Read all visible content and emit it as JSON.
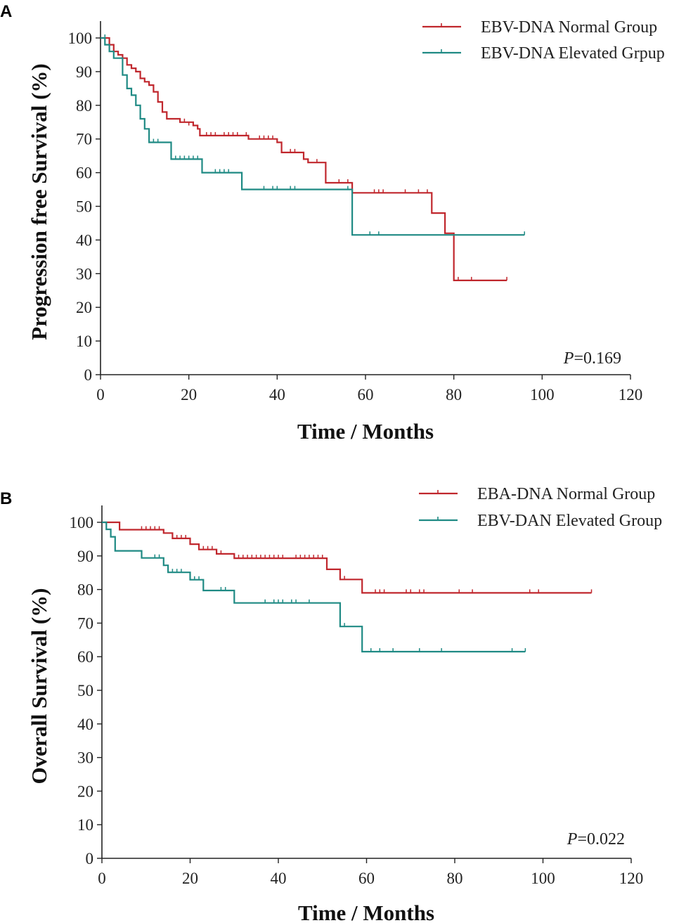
{
  "chart_data": [
    {
      "panel_label": "A",
      "type": "line",
      "subtype": "kaplan-meier",
      "xlabel": "Time / Months",
      "ylabel": "Progression free Survival (%)",
      "xlim": [
        0,
        120
      ],
      "ylim": [
        0,
        100
      ],
      "xticks": [
        0,
        20,
        40,
        60,
        80,
        100,
        120
      ],
      "yticks": [
        0,
        10,
        20,
        30,
        40,
        50,
        60,
        70,
        80,
        90,
        100
      ],
      "pvalue_letter": "P",
      "pvalue_rest": "=0.169",
      "legend_position": "top-right",
      "series": [
        {
          "name": "EBV-DNA Normal Group",
          "color": "#c0272d",
          "steps": [
            [
              0,
              100
            ],
            [
              2,
              98
            ],
            [
              3,
              96
            ],
            [
              4,
              95
            ],
            [
              5,
              94
            ],
            [
              6,
              92
            ],
            [
              7,
              91
            ],
            [
              8,
              90
            ],
            [
              9,
              88
            ],
            [
              10,
              87
            ],
            [
              11,
              86
            ],
            [
              12,
              84
            ],
            [
              13,
              81
            ],
            [
              14,
              78
            ],
            [
              15,
              76
            ],
            [
              18,
              75
            ],
            [
              21,
              74
            ],
            [
              22,
              73
            ],
            [
              22.5,
              71
            ],
            [
              33,
              71
            ],
            [
              33.5,
              70
            ],
            [
              40,
              69
            ],
            [
              41,
              66
            ],
            [
              46,
              64
            ],
            [
              47,
              63
            ],
            [
              51,
              57
            ],
            [
              57,
              54
            ],
            [
              75,
              48
            ],
            [
              78,
              42
            ],
            [
              80,
              28
            ],
            [
              92,
              28
            ]
          ],
          "censors": [
            [
              19,
              75
            ],
            [
              20,
              74
            ],
            [
              21,
              74
            ],
            [
              24,
              71
            ],
            [
              25,
              71
            ],
            [
              26,
              71
            ],
            [
              28,
              71
            ],
            [
              29,
              71
            ],
            [
              30,
              71
            ],
            [
              31,
              71
            ],
            [
              33,
              71
            ],
            [
              36,
              70
            ],
            [
              37,
              70
            ],
            [
              38,
              70
            ],
            [
              39,
              70
            ],
            [
              43,
              66
            ],
            [
              44,
              66
            ],
            [
              47,
              63
            ],
            [
              49,
              63
            ],
            [
              54,
              57
            ],
            [
              56,
              57
            ],
            [
              62,
              54
            ],
            [
              63,
              54
            ],
            [
              64,
              54
            ],
            [
              69,
              54
            ],
            [
              72,
              54
            ],
            [
              74,
              54
            ],
            [
              78,
              42
            ],
            [
              81,
              28
            ],
            [
              84,
              28
            ],
            [
              92,
              28
            ]
          ]
        },
        {
          "name": "EBV-DNA Elevated Grpup",
          "color": "#1f8a84",
          "steps": [
            [
              0,
              100
            ],
            [
              1,
              98
            ],
            [
              2,
              96
            ],
            [
              3,
              94
            ],
            [
              5,
              89
            ],
            [
              6,
              85
            ],
            [
              7,
              83
            ],
            [
              8,
              80
            ],
            [
              9,
              76
            ],
            [
              10,
              73
            ],
            [
              11,
              69
            ],
            [
              16,
              64
            ],
            [
              23,
              60
            ],
            [
              32,
              55
            ],
            [
              57,
              41.5
            ],
            [
              96,
              41.5
            ]
          ],
          "censors": [
            [
              1,
              100
            ],
            [
              12,
              69
            ],
            [
              13,
              69
            ],
            [
              17,
              64
            ],
            [
              18,
              64
            ],
            [
              19,
              64
            ],
            [
              20,
              64
            ],
            [
              21,
              64
            ],
            [
              22,
              64
            ],
            [
              26,
              60
            ],
            [
              27,
              60
            ],
            [
              28,
              60
            ],
            [
              29,
              60
            ],
            [
              37,
              55
            ],
            [
              39,
              55
            ],
            [
              40,
              55
            ],
            [
              43,
              55
            ],
            [
              44,
              55
            ],
            [
              56,
              55
            ],
            [
              61,
              41.5
            ],
            [
              63,
              41.5
            ],
            [
              96,
              41.5
            ]
          ]
        }
      ]
    },
    {
      "panel_label": "B",
      "type": "line",
      "subtype": "kaplan-meier",
      "xlabel": "Time / Months",
      "ylabel": "Overall Survival (%)",
      "xlim": [
        0,
        120
      ],
      "ylim": [
        0,
        100
      ],
      "xticks": [
        0,
        20,
        40,
        60,
        80,
        100,
        120
      ],
      "yticks": [
        0,
        10,
        20,
        30,
        40,
        50,
        60,
        70,
        80,
        90,
        100
      ],
      "pvalue_letter": "P",
      "pvalue_rest": "=0.022",
      "legend_position": "top-right",
      "series": [
        {
          "name": "EBA-DNA Normal Group",
          "color": "#c0272d",
          "steps": [
            [
              0,
              100
            ],
            [
              4,
              97.8
            ],
            [
              14,
              96.8
            ],
            [
              16,
              95.2
            ],
            [
              20,
              93.5
            ],
            [
              22,
              91.9
            ],
            [
              26,
              90.6
            ],
            [
              30,
              89.3
            ],
            [
              51,
              86
            ],
            [
              54,
              83
            ],
            [
              59,
              79
            ],
            [
              111,
              79
            ]
          ],
          "censors": [
            [
              9,
              97.8
            ],
            [
              10,
              97.8
            ],
            [
              11,
              97.8
            ],
            [
              12,
              97.8
            ],
            [
              13,
              97.8
            ],
            [
              17,
              95.2
            ],
            [
              18,
              95.2
            ],
            [
              19,
              95.2
            ],
            [
              23,
              91.9
            ],
            [
              24,
              91.9
            ],
            [
              25,
              91.9
            ],
            [
              27,
              90.6
            ],
            [
              31,
              89.3
            ],
            [
              32,
              89.3
            ],
            [
              33,
              89.3
            ],
            [
              34,
              89.3
            ],
            [
              35,
              89.3
            ],
            [
              36,
              89.3
            ],
            [
              37,
              89.3
            ],
            [
              38,
              89.3
            ],
            [
              39,
              89.3
            ],
            [
              40,
              89.3
            ],
            [
              41,
              89.3
            ],
            [
              44,
              89.3
            ],
            [
              45,
              89.3
            ],
            [
              46,
              89.3
            ],
            [
              47,
              89.3
            ],
            [
              48,
              89.3
            ],
            [
              49,
              89.3
            ],
            [
              50,
              89.3
            ],
            [
              55,
              83
            ],
            [
              62,
              79
            ],
            [
              63,
              79
            ],
            [
              64,
              79
            ],
            [
              69,
              79
            ],
            [
              70,
              79
            ],
            [
              72,
              79
            ],
            [
              73,
              79
            ],
            [
              81,
              79
            ],
            [
              84,
              79
            ],
            [
              97,
              79
            ],
            [
              99,
              79
            ],
            [
              111,
              79
            ]
          ]
        },
        {
          "name": "EBV-DAN Elevated Group",
          "color": "#1f8a84",
          "steps": [
            [
              0,
              100
            ],
            [
              1,
              97.9
            ],
            [
              2,
              95.7
            ],
            [
              3,
              91.5
            ],
            [
              9,
              89.4
            ],
            [
              14,
              87.2
            ],
            [
              15,
              85.1
            ],
            [
              20,
              82.9
            ],
            [
              23,
              79.7
            ],
            [
              30,
              76
            ],
            [
              54,
              69
            ],
            [
              59,
              61.5
            ],
            [
              96,
              61.5
            ]
          ],
          "censors": [
            [
              9,
              89.4
            ],
            [
              12,
              89.4
            ],
            [
              13,
              89.4
            ],
            [
              16,
              85.1
            ],
            [
              17,
              85.1
            ],
            [
              18,
              85.1
            ],
            [
              21,
              82.9
            ],
            [
              22,
              82.9
            ],
            [
              27,
              79.7
            ],
            [
              28,
              79.7
            ],
            [
              37,
              76
            ],
            [
              39,
              76
            ],
            [
              40,
              76
            ],
            [
              41,
              76
            ],
            [
              43,
              76
            ],
            [
              44,
              76
            ],
            [
              47,
              76
            ],
            [
              55,
              69
            ],
            [
              61,
              61.5
            ],
            [
              63,
              61.5
            ],
            [
              66,
              61.5
            ],
            [
              72,
              61.5
            ],
            [
              77,
              61.5
            ],
            [
              93,
              61.5
            ],
            [
              96,
              61.5
            ]
          ]
        }
      ]
    }
  ]
}
